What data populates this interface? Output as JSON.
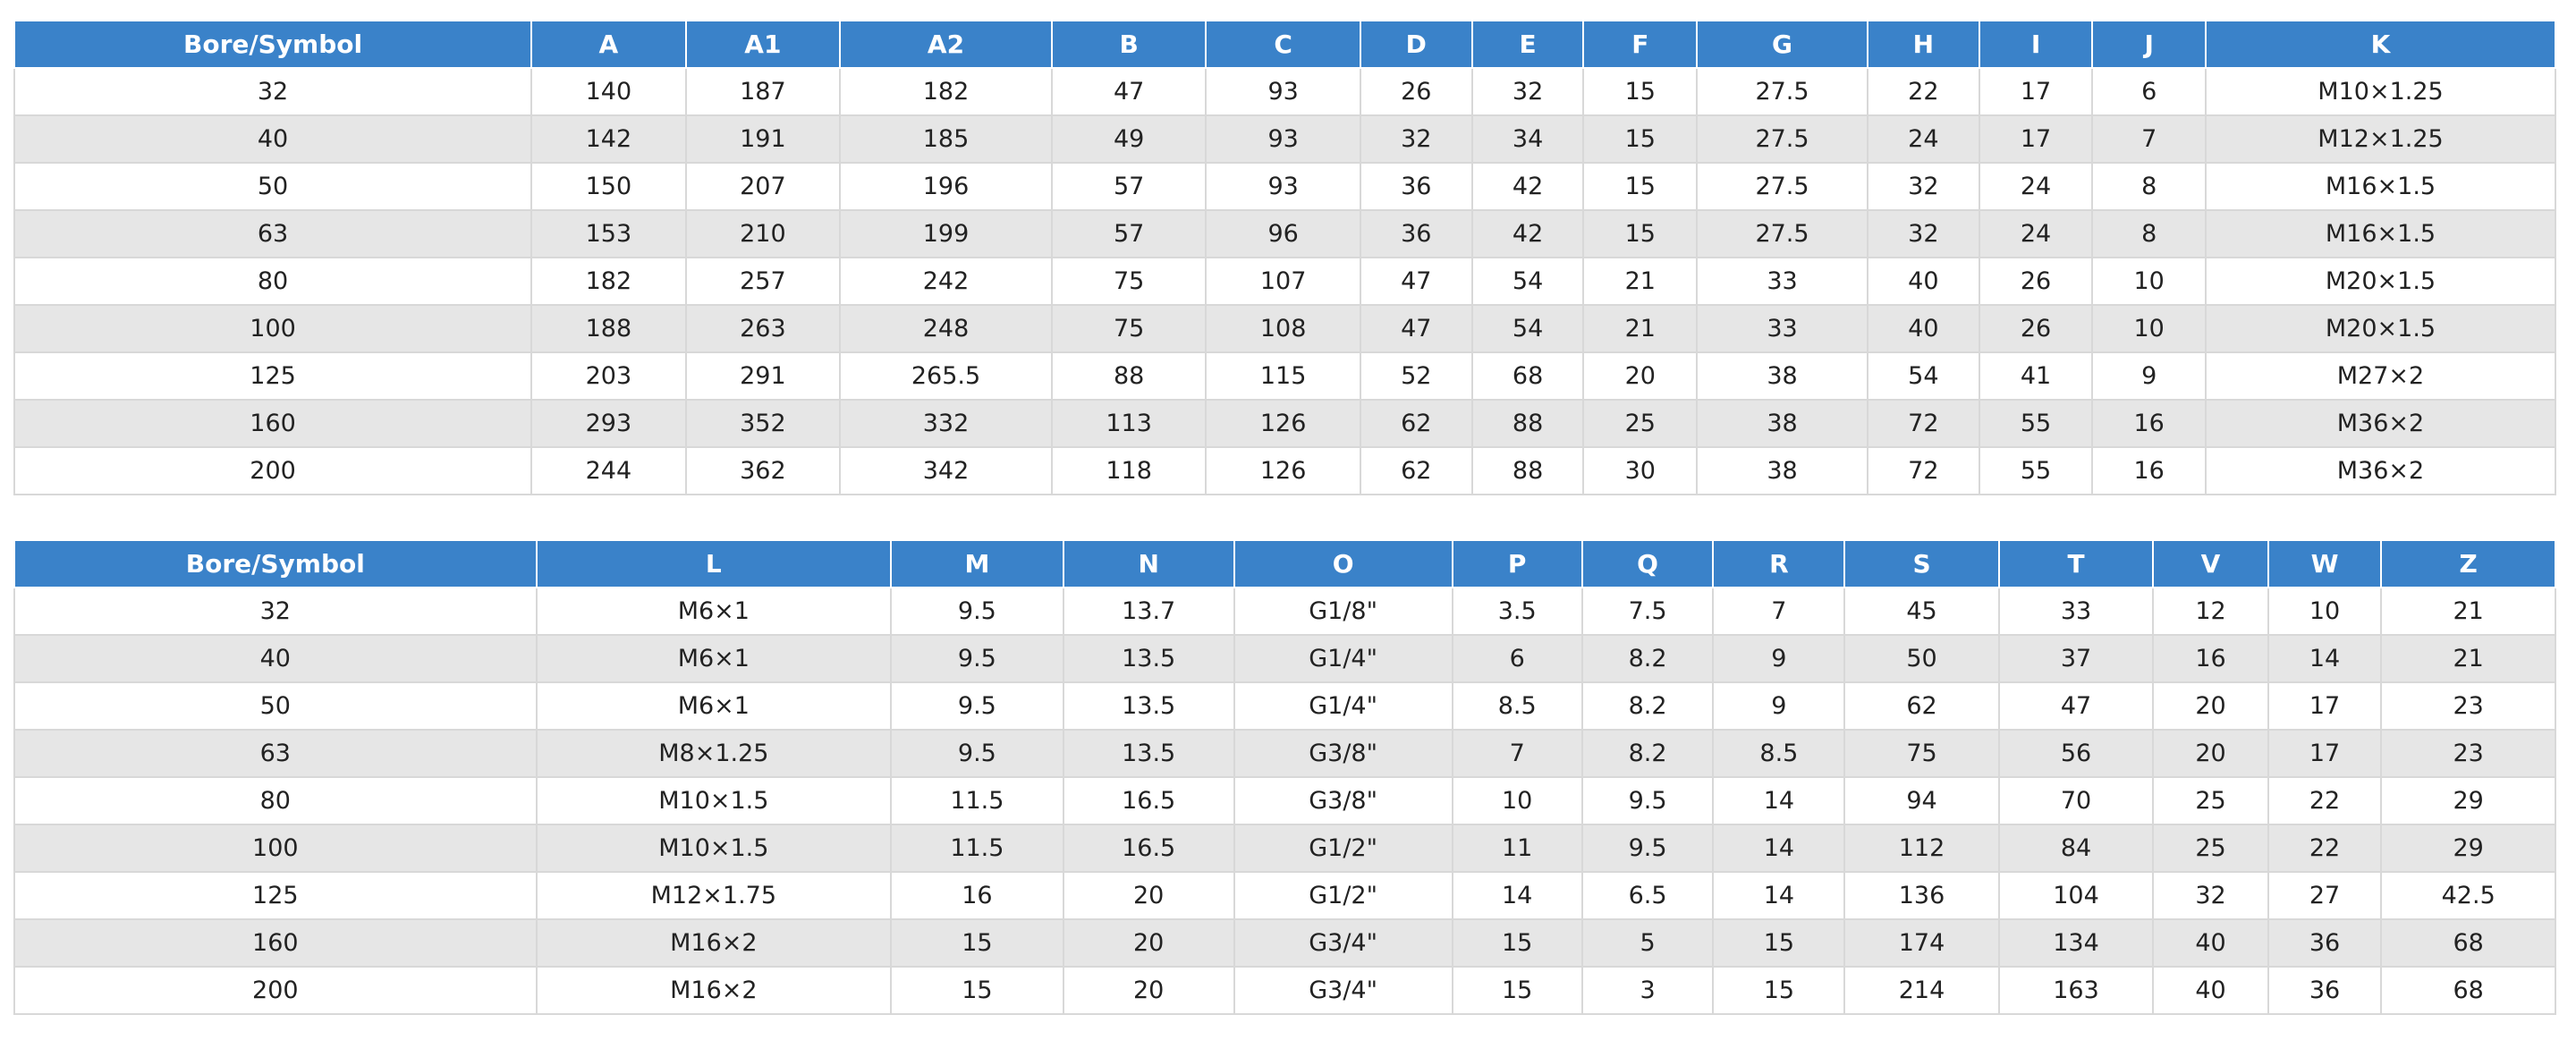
{
  "tables": [
    {
      "headers": [
        "Bore/Symbol",
        "A",
        "A1",
        "A2",
        "B",
        "C",
        "D",
        "E",
        "F",
        "G",
        "H",
        "I",
        "J",
        "K"
      ],
      "rows": [
        [
          "32",
          "140",
          "187",
          "182",
          "47",
          "93",
          "26",
          "32",
          "15",
          "27.5",
          "22",
          "17",
          "6",
          "M10×1.25"
        ],
        [
          "40",
          "142",
          "191",
          "185",
          "49",
          "93",
          "32",
          "34",
          "15",
          "27.5",
          "24",
          "17",
          "7",
          "M12×1.25"
        ],
        [
          "50",
          "150",
          "207",
          "196",
          "57",
          "93",
          "36",
          "42",
          "15",
          "27.5",
          "32",
          "24",
          "8",
          "M16×1.5"
        ],
        [
          "63",
          "153",
          "210",
          "199",
          "57",
          "96",
          "36",
          "42",
          "15",
          "27.5",
          "32",
          "24",
          "8",
          "M16×1.5"
        ],
        [
          "80",
          "182",
          "257",
          "242",
          "75",
          "107",
          "47",
          "54",
          "21",
          "33",
          "40",
          "26",
          "10",
          "M20×1.5"
        ],
        [
          "100",
          "188",
          "263",
          "248",
          "75",
          "108",
          "47",
          "54",
          "21",
          "33",
          "40",
          "26",
          "10",
          "M20×1.5"
        ],
        [
          "125",
          "203",
          "291",
          "265.5",
          "88",
          "115",
          "52",
          "68",
          "20",
          "38",
          "54",
          "41",
          "9",
          "M27×2"
        ],
        [
          "160",
          "293",
          "352",
          "332",
          "113",
          "126",
          "62",
          "88",
          "25",
          "38",
          "72",
          "55",
          "16",
          "M36×2"
        ],
        [
          "200",
          "244",
          "362",
          "342",
          "118",
          "126",
          "62",
          "88",
          "30",
          "38",
          "72",
          "55",
          "16",
          "M36×2"
        ]
      ]
    },
    {
      "headers": [
        "Bore/Symbol",
        "L",
        "M",
        "N",
        "O",
        "P",
        "Q",
        "R",
        "S",
        "T",
        "V",
        "W",
        "Z"
      ],
      "rows": [
        [
          "32",
          "M6×1",
          "9.5",
          "13.7",
          "G1/8\"",
          "3.5",
          "7.5",
          "7",
          "45",
          "33",
          "12",
          "10",
          "21"
        ],
        [
          "40",
          "M6×1",
          "9.5",
          "13.5",
          "G1/4\"",
          "6",
          "8.2",
          "9",
          "50",
          "37",
          "16",
          "14",
          "21"
        ],
        [
          "50",
          "M6×1",
          "9.5",
          "13.5",
          "G1/4\"",
          "8.5",
          "8.2",
          "9",
          "62",
          "47",
          "20",
          "17",
          "23"
        ],
        [
          "63",
          "M8×1.25",
          "9.5",
          "13.5",
          "G3/8\"",
          "7",
          "8.2",
          "8.5",
          "75",
          "56",
          "20",
          "17",
          "23"
        ],
        [
          "80",
          "M10×1.5",
          "11.5",
          "16.5",
          "G3/8\"",
          "10",
          "9.5",
          "14",
          "94",
          "70",
          "25",
          "22",
          "29"
        ],
        [
          "100",
          "M10×1.5",
          "11.5",
          "16.5",
          "G1/2\"",
          "11",
          "9.5",
          "14",
          "112",
          "84",
          "25",
          "22",
          "29"
        ],
        [
          "125",
          "M12×1.75",
          "16",
          "20",
          "G1/2\"",
          "14",
          "6.5",
          "14",
          "136",
          "104",
          "32",
          "27",
          "42.5"
        ],
        [
          "160",
          "M16×2",
          "15",
          "20",
          "G3/4\"",
          "15",
          "5",
          "15",
          "174",
          "134",
          "40",
          "36",
          "68"
        ],
        [
          "200",
          "M16×2",
          "15",
          "20",
          "G3/4\"",
          "15",
          "3",
          "15",
          "214",
          "163",
          "40",
          "36",
          "68"
        ]
      ]
    }
  ]
}
